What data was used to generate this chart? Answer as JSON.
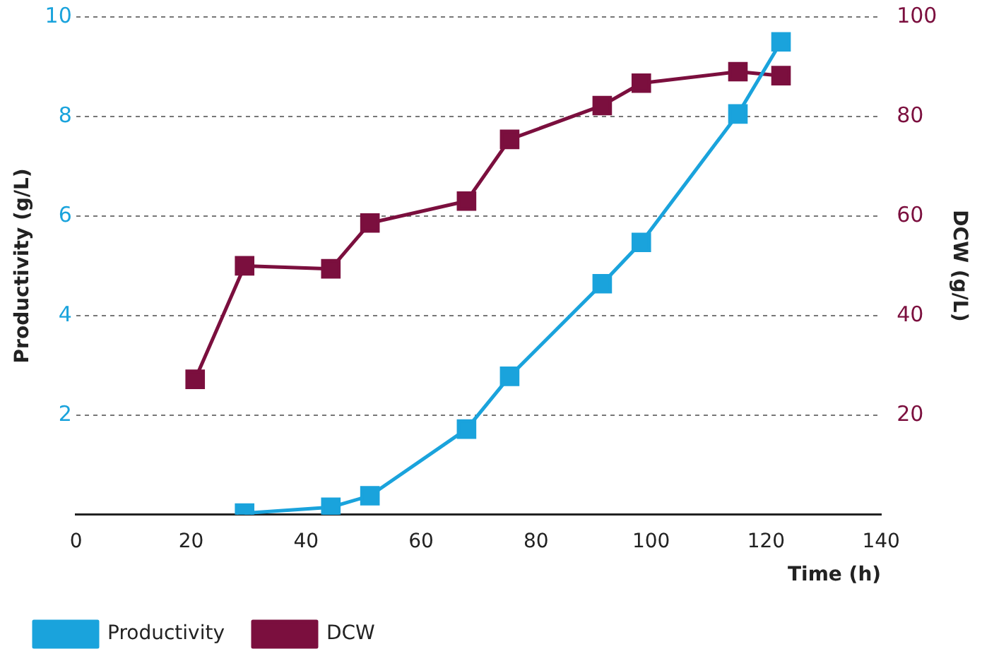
{
  "chart_data": {
    "type": "line",
    "xlabel": "Time (h)",
    "ylabel": "Productivity (g/L)",
    "y2label": "DCW (g/L)",
    "xlim": [
      0,
      140
    ],
    "xticks": [
      0,
      20,
      40,
      60,
      80,
      100,
      120,
      140
    ],
    "ylim": [
      0,
      10
    ],
    "yticks": [
      2,
      4,
      6,
      8,
      10
    ],
    "y2lim": [
      0,
      100
    ],
    "y2ticks": [
      20,
      40,
      60,
      80,
      100
    ],
    "grid": "y",
    "legend": "bottom left",
    "marker": "square",
    "line_style": "solid",
    "series": [
      {
        "name": "Productivity",
        "color": "#1aa3dc",
        "x": [
          29.3,
          44.3,
          51.1,
          67.9,
          75.4,
          91.5,
          98.3,
          115.1,
          122.6
        ],
        "values": [
          0.03,
          0.15,
          0.38,
          1.72,
          2.78,
          4.64,
          5.47,
          8.05,
          9.5
        ]
      },
      {
        "name": "DCW",
        "color": "#7b0f3e",
        "axis": "y2",
        "x": [
          20.7,
          29.3,
          44.3,
          51.1,
          67.9,
          75.4,
          91.5,
          98.3,
          115.1,
          122.6
        ],
        "values": [
          27.2,
          50,
          49.4,
          58.6,
          63,
          75.4,
          82.2,
          86.7,
          89,
          88.2
        ]
      }
    ]
  }
}
